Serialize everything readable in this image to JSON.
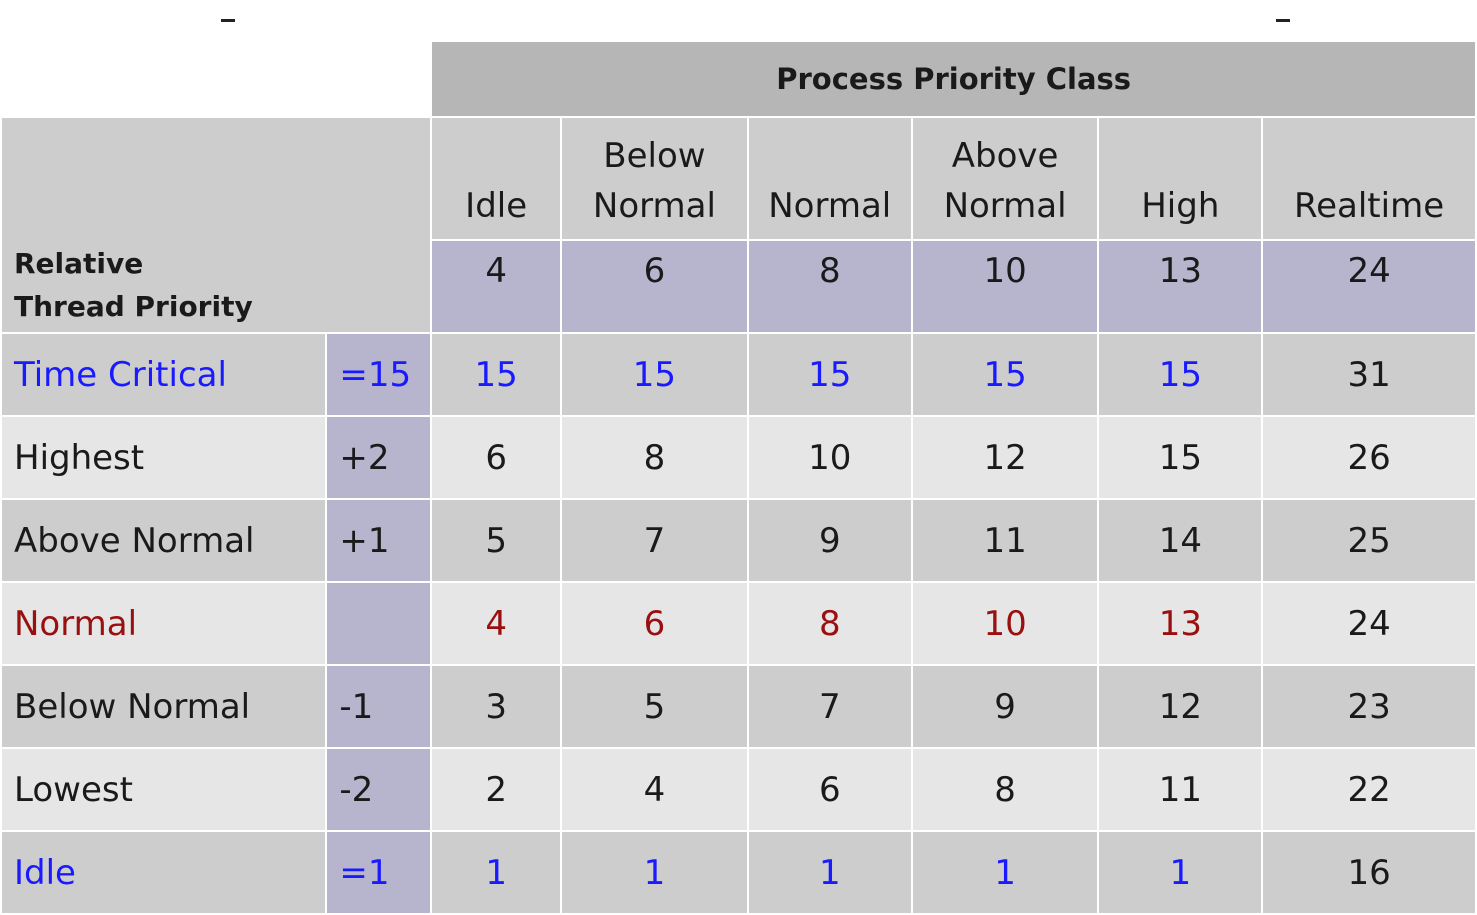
{
  "title": "Process Priority Class",
  "corner_label": [
    "Relative",
    "Thread Priority"
  ],
  "classes": [
    {
      "name": [
        "",
        "Idle"
      ],
      "base": "4"
    },
    {
      "name": [
        "Below",
        "Normal"
      ],
      "base": "6"
    },
    {
      "name": [
        "",
        "Normal"
      ],
      "base": "8"
    },
    {
      "name": [
        "Above",
        "Normal"
      ],
      "base": "10"
    },
    {
      "name": [
        "",
        "High"
      ],
      "base": "13"
    },
    {
      "name": [
        "",
        "Realtime"
      ],
      "base": "24"
    }
  ],
  "rows": [
    {
      "label": "Time Critical",
      "offset": "=15",
      "values": [
        "15",
        "15",
        "15",
        "15",
        "15",
        "31"
      ],
      "color": "#1a1aff"
    },
    {
      "label": "Highest",
      "offset": "+2",
      "values": [
        "6",
        "8",
        "10",
        "12",
        "15",
        "26"
      ],
      "color": "#1a1a1a"
    },
    {
      "label": "Above Normal",
      "offset": "+1",
      "values": [
        "5",
        "7",
        "9",
        "11",
        "14",
        "25"
      ],
      "color": "#1a1a1a"
    },
    {
      "label": "Normal",
      "offset": "",
      "values": [
        "4",
        "6",
        "8",
        "10",
        "13",
        "24"
      ],
      "color": "#9a1010"
    },
    {
      "label": "Below Normal",
      "offset": "-1",
      "values": [
        "3",
        "5",
        "7",
        "9",
        "12",
        "23"
      ],
      "color": "#1a1a1a"
    },
    {
      "label": "Lowest",
      "offset": "-2",
      "values": [
        "2",
        "4",
        "6",
        "8",
        "11",
        "22"
      ],
      "color": "#1a1a1a"
    },
    {
      "label": "Idle",
      "offset": "=1",
      "values": [
        "1",
        "1",
        "1",
        "1",
        "1",
        "16"
      ],
      "color": "#1a1aff"
    }
  ]
}
